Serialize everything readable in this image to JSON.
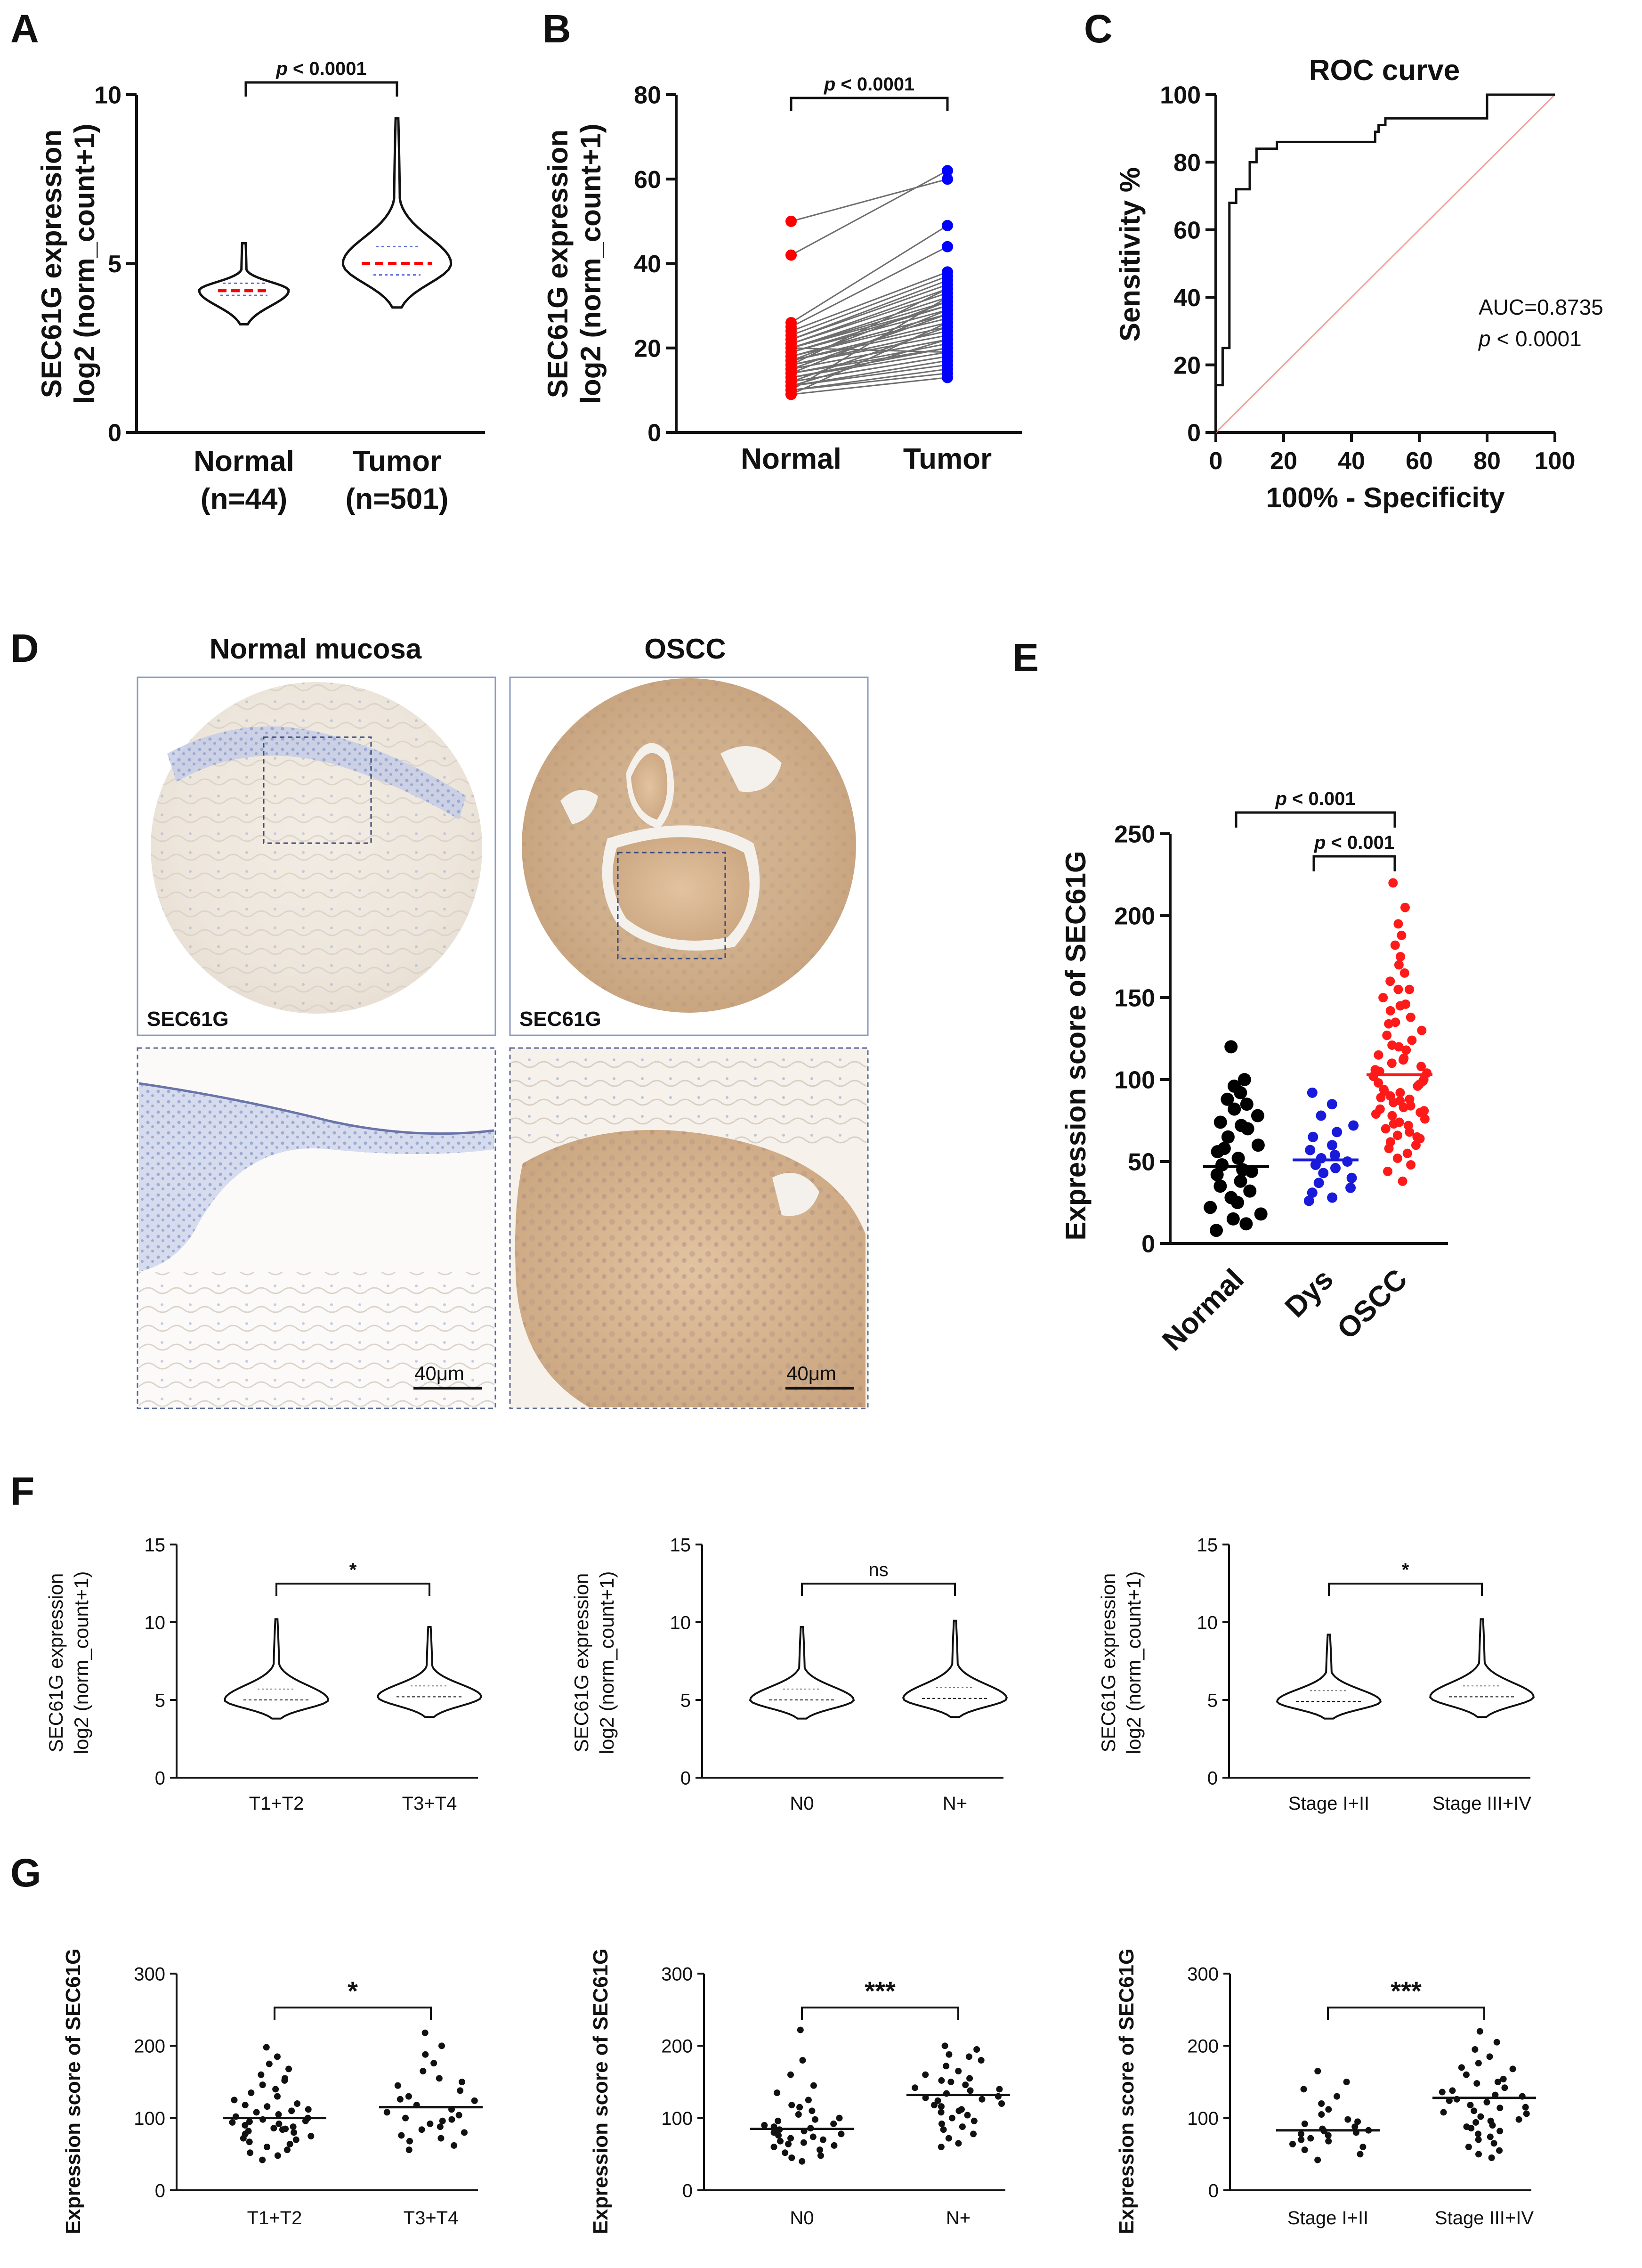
{
  "panel_labels": {
    "A": "A",
    "B": "B",
    "C": "C",
    "D": "D",
    "E": "E",
    "F": "F",
    "G": "G"
  },
  "chart_data": [
    {
      "id": "A",
      "type": "violin",
      "categories": [
        "Normal",
        "Tumor"
      ],
      "category_sublabels": [
        "(n=44)",
        "(n=501)"
      ],
      "ylabel_lines": [
        "SEC61G expression",
        "log2 (norm_count+1)"
      ],
      "ylim": [
        0,
        10
      ],
      "yticks": [
        0,
        5,
        10
      ],
      "medians": [
        4.2,
        5.0
      ],
      "ranges": [
        [
          3.2,
          5.6
        ],
        [
          3.7,
          9.3
        ]
      ],
      "significance": {
        "p": "p",
        "rest": " < 0.0001"
      }
    },
    {
      "id": "B",
      "type": "paired-scatter",
      "categories": [
        "Normal",
        "Tumor"
      ],
      "ylabel_lines": [
        "SEC61G expression",
        "log2 (norm_count+1)"
      ],
      "ylim": [
        0,
        80
      ],
      "yticks": [
        0,
        20,
        40,
        60,
        80
      ],
      "series_colors": [
        "#ff0000",
        "#0000ff"
      ],
      "pairs": [
        [
          50,
          60
        ],
        [
          42,
          62
        ],
        [
          26,
          49
        ],
        [
          25,
          44
        ],
        [
          24,
          38
        ],
        [
          23,
          37
        ],
        [
          22,
          36
        ],
        [
          22,
          35
        ],
        [
          21,
          34
        ],
        [
          21,
          33
        ],
        [
          20,
          32
        ],
        [
          20,
          31
        ],
        [
          20,
          30
        ],
        [
          19,
          30
        ],
        [
          19,
          29
        ],
        [
          18,
          28
        ],
        [
          18,
          28
        ],
        [
          18,
          27
        ],
        [
          17,
          26
        ],
        [
          17,
          25
        ],
        [
          16,
          24
        ],
        [
          16,
          23
        ],
        [
          15,
          22
        ],
        [
          15,
          22
        ],
        [
          14,
          21
        ],
        [
          14,
          20
        ],
        [
          13,
          20
        ],
        [
          13,
          19
        ],
        [
          12,
          18
        ],
        [
          12,
          18
        ],
        [
          11,
          17
        ],
        [
          11,
          16
        ],
        [
          10,
          15
        ],
        [
          10,
          14
        ],
        [
          9,
          13
        ],
        [
          9,
          26
        ],
        [
          20,
          19
        ],
        [
          17,
          31
        ],
        [
          16,
          34
        ],
        [
          15,
          28
        ],
        [
          12,
          25
        ],
        [
          11,
          22
        ],
        [
          10,
          32
        ],
        [
          14,
          29
        ]
      ],
      "significance": {
        "p": "p",
        "rest": " < 0.0001"
      }
    },
    {
      "id": "C",
      "type": "line",
      "title": "ROC curve",
      "xlabel": "100% - Specificity",
      "ylabel": "Sensitivity %",
      "xlim": [
        0,
        100
      ],
      "ylim": [
        0,
        100
      ],
      "xticks": [
        0,
        20,
        40,
        60,
        80,
        100
      ],
      "yticks": [
        0,
        20,
        40,
        60,
        80,
        100
      ],
      "curve": [
        [
          0,
          0
        ],
        [
          0,
          14
        ],
        [
          2,
          14
        ],
        [
          2,
          25
        ],
        [
          4,
          25
        ],
        [
          4,
          68
        ],
        [
          6,
          68
        ],
        [
          6,
          72
        ],
        [
          10,
          72
        ],
        [
          10,
          80
        ],
        [
          12,
          80
        ],
        [
          12,
          84
        ],
        [
          18,
          84
        ],
        [
          18,
          86
        ],
        [
          47,
          86
        ],
        [
          47,
          89
        ],
        [
          48,
          89
        ],
        [
          48,
          91
        ],
        [
          50,
          91
        ],
        [
          50,
          93
        ],
        [
          80,
          93
        ],
        [
          80,
          100
        ],
        [
          100,
          100
        ]
      ],
      "diagonal": [
        [
          0,
          0
        ],
        [
          100,
          100
        ]
      ],
      "annotation_lines": [
        "AUC=0.8735",
        {
          "p": "p",
          "rest": " < 0.0001"
        }
      ]
    },
    {
      "id": "E",
      "type": "scatter",
      "categories": [
        "Normal",
        "Dys",
        "OSCC"
      ],
      "ylabel": "Expression score of SEC61G",
      "ylim": [
        0,
        250
      ],
      "yticks": [
        0,
        50,
        100,
        150,
        200,
        250
      ],
      "series_colors": [
        "#000000",
        "#1a1adb",
        "#ff1a1a"
      ],
      "medians": [
        47,
        51,
        103
      ],
      "values": [
        [
          120,
          100,
          96,
          92,
          88,
          85,
          82,
          78,
          74,
          70,
          65,
          60,
          56,
          52,
          48,
          45,
          42,
          38,
          35,
          32,
          28,
          25,
          22,
          18,
          15,
          12,
          8,
          72,
          58,
          44
        ],
        [
          92,
          85,
          78,
          72,
          65,
          60,
          57,
          54,
          52,
          50,
          48,
          46,
          43,
          40,
          37,
          34,
          31,
          28,
          26,
          68
        ],
        [
          220,
          205,
          195,
          188,
          182,
          175,
          170,
          165,
          160,
          155,
          150,
          146,
          142,
          138,
          134,
          130,
          127,
          124,
          121,
          118,
          115,
          112,
          110,
          108,
          106,
          104,
          102,
          100,
          98,
          96,
          94,
          92,
          90,
          88,
          86,
          84,
          82,
          80,
          78,
          76,
          74,
          72,
          70,
          68,
          66,
          64,
          62,
          60,
          58,
          55,
          52,
          48,
          44,
          38,
          120,
          113,
          105,
          97,
          89,
          81,
          73,
          65,
          135,
          145,
          155,
          87,
          93,
          99,
          79,
          83
        ]
      ],
      "significance": [
        {
          "p": "p",
          "rest": " < 0.001"
        },
        {
          "p": "p",
          "rest": " < 0.001"
        }
      ]
    },
    {
      "id": "F1",
      "type": "violin",
      "categories": [
        "T1+T2",
        "T3+T4"
      ],
      "ylabel_lines": [
        "SEC61G expression",
        "log2 (norm_count+1)"
      ],
      "ylim": [
        0,
        15
      ],
      "yticks": [
        0,
        5,
        10,
        15
      ],
      "medians": [
        5.0,
        5.2
      ],
      "ranges": [
        [
          3.8,
          10.2
        ],
        [
          3.9,
          9.7
        ]
      ],
      "significance": "*"
    },
    {
      "id": "F2",
      "type": "violin",
      "categories": [
        "N0",
        "N+"
      ],
      "ylabel_lines": [
        "SEC61G expression",
        "log2 (norm_count+1)"
      ],
      "ylim": [
        0,
        15
      ],
      "yticks": [
        0,
        5,
        10,
        15
      ],
      "medians": [
        5.0,
        5.1
      ],
      "ranges": [
        [
          3.8,
          9.7
        ],
        [
          3.9,
          10.1
        ]
      ],
      "significance": "ns"
    },
    {
      "id": "F3",
      "type": "violin",
      "categories": [
        "Stage I+II",
        "Stage III+IV"
      ],
      "ylabel_lines": [
        "SEC61G expression",
        "log2 (norm_count+1)"
      ],
      "ylim": [
        0,
        15
      ],
      "yticks": [
        0,
        5,
        10,
        15
      ],
      "medians": [
        4.9,
        5.2
      ],
      "ranges": [
        [
          3.8,
          9.2
        ],
        [
          3.9,
          10.2
        ]
      ],
      "significance": "*"
    },
    {
      "id": "G1",
      "type": "scatter",
      "categories": [
        "T1+T2",
        "T3+T4"
      ],
      "ylabel": "Expression score of SEC61G",
      "ylim": [
        0,
        300
      ],
      "yticks": [
        0,
        100,
        200,
        300
      ],
      "medians": [
        100,
        115
      ],
      "values": [
        [
          198,
          185,
          175,
          168,
          160,
          152,
          146,
          140,
          135,
          130,
          125,
          120,
          116,
          112,
          108,
          105,
          102,
          100,
          98,
          96,
          94,
          92,
          90,
          88,
          86,
          84,
          82,
          80,
          78,
          75,
          72,
          70,
          67,
          64,
          60,
          56,
          52,
          48,
          42,
          155,
          118,
          110,
          95,
          85
        ],
        [
          218,
          200,
          188,
          176,
          165,
          155,
          145,
          138,
          130,
          124,
          118,
          112,
          108,
          104,
          100,
          96,
          92,
          88,
          84,
          80,
          76,
          72,
          68,
          62,
          56,
          150,
          126,
          98
        ]
      ],
      "significance": "*"
    },
    {
      "id": "G2",
      "type": "scatter",
      "categories": [
        "N0",
        "N+"
      ],
      "ylabel": "Expression score of SEC61G",
      "ylim": [
        0,
        300
      ],
      "yticks": [
        0,
        100,
        200,
        300
      ],
      "medians": [
        85,
        132
      ],
      "values": [
        [
          222,
          180,
          160,
          145,
          135,
          125,
          118,
          110,
          105,
          100,
          96,
          92,
          88,
          86,
          84,
          82,
          80,
          78,
          76,
          74,
          72,
          70,
          68,
          66,
          64,
          62,
          60,
          56,
          52,
          48,
          45,
          40,
          115,
          98,
          90
        ],
        [
          200,
          195,
          188,
          180,
          172,
          165,
          160,
          155,
          150,
          146,
          142,
          138,
          134,
          130,
          128,
          126,
          124,
          120,
          116,
          112,
          108,
          104,
          100,
          96,
          92,
          88,
          84,
          78,
          72,
          65,
          60,
          185,
          152,
          140,
          118,
          110
        ]
      ],
      "significance": "***"
    },
    {
      "id": "G3",
      "type": "scatter",
      "categories": [
        "Stage I+II",
        "Stage III+IV"
      ],
      "ylabel": "Expression score of SEC61G",
      "ylim": [
        0,
        300
      ],
      "yticks": [
        0,
        100,
        200,
        300
      ],
      "medians": [
        83,
        128
      ],
      "values": [
        [
          165,
          150,
          140,
          130,
          120,
          112,
          105,
          98,
          92,
          88,
          85,
          83,
          82,
          80,
          78,
          76,
          72,
          68,
          64,
          60,
          56,
          50,
          42,
          95,
          70
        ],
        [
          220,
          205,
          195,
          185,
          176,
          168,
          160,
          154,
          148,
          142,
          136,
          130,
          126,
          122,
          118,
          114,
          110,
          106,
          102,
          98,
          94,
          90,
          86,
          82,
          78,
          74,
          70,
          65,
          60,
          55,
          50,
          45,
          170,
          150,
          138,
          132,
          124,
          115,
          108,
          96,
          88
        ]
      ],
      "significance": "***"
    }
  ],
  "panel_d": {
    "titles": [
      "Normal mucosa",
      "OSCC"
    ],
    "stain_labels": [
      "SEC61G",
      "SEC61G"
    ],
    "scale_labels": [
      "40μm",
      "40μm"
    ]
  }
}
